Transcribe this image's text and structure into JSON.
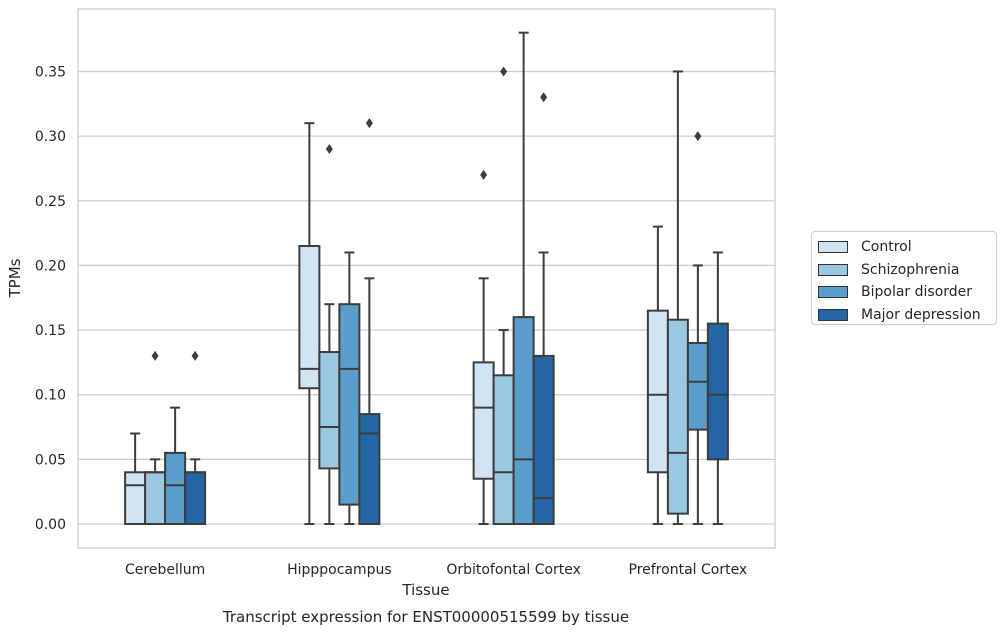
{
  "chart_data": {
    "type": "box",
    "title": "",
    "caption": "Transcript expression for ENST00000515599 by tissue",
    "xlabel": "Tissue",
    "ylabel": "TPMs",
    "ylim": [
      -0.018,
      0.398
    ],
    "yticks": [
      "0.00",
      "0.05",
      "0.10",
      "0.15",
      "0.20",
      "0.25",
      "0.30",
      "0.35"
    ],
    "ytick_values": [
      0,
      0.05,
      0.1,
      0.15,
      0.2,
      0.25,
      0.3,
      0.35
    ],
    "categories": [
      "Cerebellum",
      "Hipppocampus",
      "Orbitofontal Cortex",
      "Prefrontal Cortex"
    ],
    "grid": "horizontal",
    "legend_position": "right",
    "series": [
      {
        "name": "Control",
        "color": "#d2e3f3",
        "boxes": [
          {
            "whislo": 0,
            "q1": 0,
            "med": 0.03,
            "q3": 0.04,
            "whishi": 0.07,
            "fliers": []
          },
          {
            "whislo": 0,
            "q1": 0.105,
            "med": 0.12,
            "q3": 0.215,
            "whishi": 0.31,
            "fliers": []
          },
          {
            "whislo": 0,
            "q1": 0.035,
            "med": 0.09,
            "q3": 0.125,
            "whishi": 0.19,
            "fliers": [
              0.27
            ]
          },
          {
            "whislo": 0,
            "q1": 0.04,
            "med": 0.1,
            "q3": 0.165,
            "whishi": 0.23,
            "fliers": []
          }
        ]
      },
      {
        "name": "Schizophrenia",
        "color": "#9ac8e0",
        "boxes": [
          {
            "whislo": 0,
            "q1": 0,
            "med": 0.04,
            "q3": 0.04,
            "whishi": 0.05,
            "fliers": [
              0.13
            ]
          },
          {
            "whislo": 0,
            "q1": 0.043,
            "med": 0.075,
            "q3": 0.133,
            "whishi": 0.17,
            "fliers": [
              0.29
            ]
          },
          {
            "whislo": 0,
            "q1": 0,
            "med": 0.04,
            "q3": 0.115,
            "whishi": 0.15,
            "fliers": [
              0.35
            ]
          },
          {
            "whislo": 0,
            "q1": 0.008,
            "med": 0.055,
            "q3": 0.158,
            "whishi": 0.35,
            "fliers": []
          }
        ]
      },
      {
        "name": "Bipolar disorder",
        "color": "#5a9ecc",
        "boxes": [
          {
            "whislo": 0,
            "q1": 0,
            "med": 0.03,
            "q3": 0.055,
            "whishi": 0.09,
            "fliers": []
          },
          {
            "whislo": 0,
            "q1": 0.015,
            "med": 0.12,
            "q3": 0.17,
            "whishi": 0.21,
            "fliers": []
          },
          {
            "whislo": 0,
            "q1": 0,
            "med": 0.05,
            "q3": 0.16,
            "whishi": 0.38,
            "fliers": []
          },
          {
            "whislo": 0,
            "q1": 0.073,
            "med": 0.11,
            "q3": 0.14,
            "whishi": 0.2,
            "fliers": [
              0.3
            ]
          }
        ]
      },
      {
        "name": "Major depression",
        "color": "#2466a5",
        "boxes": [
          {
            "whislo": 0,
            "q1": 0,
            "med": 0.04,
            "q3": 0.04,
            "whishi": 0.05,
            "fliers": [
              0.13
            ]
          },
          {
            "whislo": 0,
            "q1": 0,
            "med": 0.07,
            "q3": 0.085,
            "whishi": 0.19,
            "fliers": [
              0.31
            ]
          },
          {
            "whislo": 0,
            "q1": 0,
            "med": 0.02,
            "q3": 0.13,
            "whishi": 0.21,
            "fliers": [
              0.33
            ]
          },
          {
            "whislo": 0,
            "q1": 0.05,
            "med": 0.1,
            "q3": 0.155,
            "whishi": 0.21,
            "fliers": []
          }
        ]
      }
    ]
  }
}
